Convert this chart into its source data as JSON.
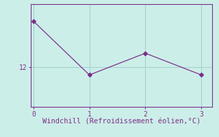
{
  "x": [
    0,
    1,
    2,
    3
  ],
  "y": [
    16.0,
    11.3,
    13.2,
    11.3
  ],
  "line_color": "#7b2f8b",
  "marker": "D",
  "marker_size": 3,
  "background_color": "#cceee8",
  "xlabel": "Windchill (Refroidissement éolien,°C)",
  "xlabel_color": "#7b2f8b",
  "xlabel_fontsize": 7.5,
  "ytick_labels": [
    "12"
  ],
  "ytick_values": [
    12
  ],
  "xtick_values": [
    0,
    1,
    2,
    3
  ],
  "ylim": [
    8.5,
    17.5
  ],
  "xlim": [
    -0.05,
    3.2
  ],
  "grid_color": "#9ecfcc",
  "spine_color": "#7b2f8b",
  "tick_color": "#7b2f8b"
}
